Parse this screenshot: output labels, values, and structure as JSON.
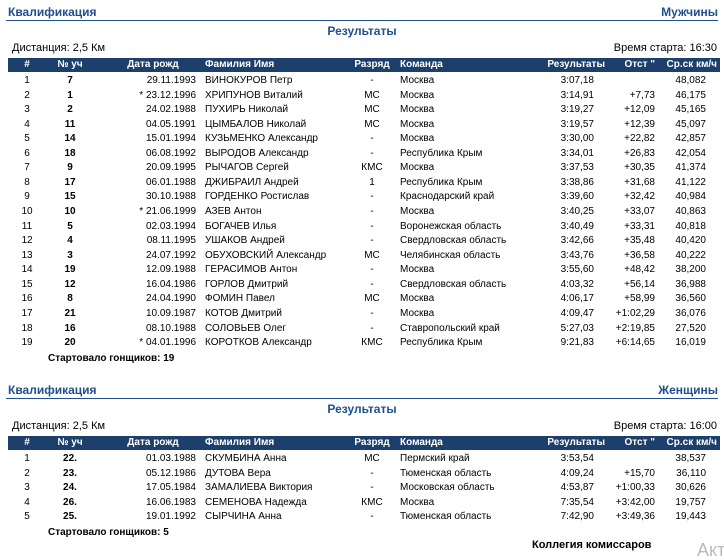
{
  "sections": [
    {
      "title": "Квалификация",
      "gender": "Мужчины",
      "subtitle": "Результаты",
      "distance": "Дистанция: 2,5 Км",
      "start_time": "Время старта: 16:30",
      "columns": [
        "#",
        "№ уч",
        "Дата рожд",
        "Фамилия  Имя",
        "Разряд",
        "Команда",
        "Результаты",
        "Отст \"",
        "Ср.ск км/ч"
      ],
      "rows": [
        [
          "1",
          "7",
          "29.11.1993",
          "ВИНОКУРОВ Петр",
          "-",
          "Москва",
          "3:07,18",
          null,
          "48,082"
        ],
        [
          "2",
          "1",
          "* 23.12.1996",
          "ХРИПУНОВ Виталий",
          "МС",
          "Москва",
          "3:14,91",
          "+7,73",
          "46,175"
        ],
        [
          "3",
          "2",
          "24.02.1988",
          "ПУХИРЬ Николай",
          "МС",
          "Москва",
          "3:19,27",
          "+12,09",
          "45,165"
        ],
        [
          "4",
          "11",
          "04.05.1991",
          "ЦЫМБАЛОВ Николай",
          "МС",
          "Москва",
          "3:19,57",
          "+12,39",
          "45,097"
        ],
        [
          "5",
          "14",
          "15.01.1994",
          "КУЗЬМЕНКО Александр",
          "-",
          "Москва",
          "3:30,00",
          "+22,82",
          "42,857"
        ],
        [
          "6",
          "18",
          "06.08.1992",
          "ВЫРОДОВ Александр",
          "-",
          "Республика Крым",
          "3:34,01",
          "+26,83",
          "42,054"
        ],
        [
          "7",
          "9",
          "20.09.1995",
          "РЫЧАГОВ Сергей",
          "КМС",
          "Москва",
          "3:37,53",
          "+30,35",
          "41,374"
        ],
        [
          "8",
          "17",
          "06.01.1988",
          "ДЖИБРАИЛ Андрей",
          "1",
          "Республика Крым",
          "3:38,86",
          "+31,68",
          "41,122"
        ],
        [
          "9",
          "15",
          "30.10.1988",
          "ГОРДЕНКО Ростислав",
          "-",
          "Краснодарский край",
          "3:39,60",
          "+32,42",
          "40,984"
        ],
        [
          "10",
          "10",
          "* 21.06.1999",
          "АЗЕВ Антон",
          "-",
          "Москва",
          "3:40,25",
          "+33,07",
          "40,863"
        ],
        [
          "11",
          "5",
          "02.03.1994",
          "БОГАЧЕВ Илья",
          "-",
          "Воронежская область",
          "3:40,49",
          "+33,31",
          "40,818"
        ],
        [
          "12",
          "4",
          "08.11.1995",
          "УШАКОВ Андрей",
          "-",
          "Свердловская область",
          "3:42,66",
          "+35,48",
          "40,420"
        ],
        [
          "13",
          "3",
          "24.07.1992",
          "ОБУХОВСКИЙ Александр",
          "МС",
          "Челябинская область",
          "3:43,76",
          "+36,58",
          "40,222"
        ],
        [
          "14",
          "19",
          "12.09.1988",
          "ГЕРАСИМОВ Антон",
          "-",
          "Москва",
          "3:55,60",
          "+48,42",
          "38,200"
        ],
        [
          "15",
          "12",
          "16.04.1986",
          "ГОРЛОВ Дмитрий",
          "-",
          "Свердловская область",
          "4:03,32",
          "+56,14",
          "36,988"
        ],
        [
          "16",
          "8",
          "24.04.1990",
          "ФОМИН Павел",
          "МС",
          "Москва",
          "4:06,17",
          "+58,99",
          "36,560"
        ],
        [
          "17",
          "21",
          "10.09.1987",
          "КОТОВ Дмитрий",
          "-",
          "Москва",
          "4:09,47",
          "+1:02,29",
          "36,076"
        ],
        [
          "18",
          "16",
          "08.10.1988",
          "СОЛОВЬЕВ Олег",
          "-",
          "Ставропольский край",
          "5:27,03",
          "+2:19,85",
          "27,520"
        ],
        [
          "19",
          "20",
          "* 04.01.1996",
          "КОРОТКОВ Александр",
          "КМС",
          "Республика Крым",
          "9:21,83",
          "+6:14,65",
          "16,019"
        ]
      ],
      "started": "Стартовало гонщиков: 19"
    },
    {
      "title": "Квалификация",
      "gender": "Женщины",
      "subtitle": "Результаты",
      "distance": "Дистанция: 2,5 Км",
      "start_time": "Время старта: 16:00",
      "columns": [
        "#",
        "№ уч",
        "Дата рожд",
        "Фамилия  Имя",
        "Разряд",
        "Команда",
        "Результаты",
        "Отст \"",
        "Ср.ск км/ч"
      ],
      "rows": [
        [
          "1",
          "22.",
          "01.03.1988",
          "СКУМБИНА Анна",
          "МС",
          "Пермский край",
          "3:53,54",
          null,
          "38,537"
        ],
        [
          "2",
          "23.",
          "05.12.1986",
          "ДУТОВА Вера",
          "-",
          "Тюменская область",
          "4:09,24",
          "+15,70",
          "36,110"
        ],
        [
          "3",
          "24.",
          "17.05.1984",
          "ЗАМАЛИЕВА Виктория",
          "-",
          "Московская область",
          "4:53,87",
          "+1:00,33",
          "30,626"
        ],
        [
          "4",
          "26.",
          "16.06.1983",
          "СЕМЕНОВА Надежда",
          "КМС",
          "Москва",
          "7:35,54",
          "+3:42,00",
          "19,757"
        ],
        [
          "5",
          "25.",
          "19.01.1992",
          "СЫРЧИНА Анна",
          "-",
          "Тюменская область",
          "7:42,90",
          "+3:49,36",
          "19,443"
        ]
      ],
      "started": "Стартовало гонщиков: 5"
    }
  ],
  "footer": "Коллегия комиссаров",
  "watermark": "Акт"
}
